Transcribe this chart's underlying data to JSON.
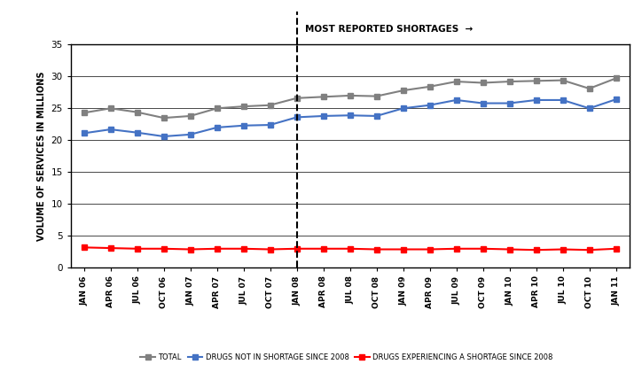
{
  "x_labels": [
    "JAN 06",
    "APR 06",
    "JUL 06",
    "OCT 06",
    "JAN 07",
    "APR 07",
    "JUL 07",
    "OCT 07",
    "JAN 08",
    "APR 08",
    "JUL 08",
    "OCT 08",
    "JAN 09",
    "APR 09",
    "JUL 09",
    "OCT 09",
    "JAN 10",
    "APR 10",
    "JUL 10",
    "OCT 10",
    "JAN 11"
  ],
  "total": [
    24.3,
    25.0,
    24.4,
    23.5,
    23.8,
    25.0,
    25.3,
    25.5,
    26.6,
    26.8,
    27.0,
    26.9,
    27.8,
    28.4,
    29.2,
    29.0,
    29.2,
    29.3,
    29.4,
    28.1,
    29.7
  ],
  "not_shortage": [
    21.1,
    21.7,
    21.2,
    20.6,
    20.9,
    22.0,
    22.3,
    22.4,
    23.6,
    23.8,
    23.9,
    23.8,
    25.0,
    25.5,
    26.3,
    25.8,
    25.8,
    26.3,
    26.3,
    25.0,
    26.4
  ],
  "shortage": [
    3.2,
    3.1,
    3.0,
    3.0,
    2.9,
    3.0,
    3.0,
    2.9,
    3.0,
    3.0,
    3.0,
    2.9,
    2.9,
    2.9,
    3.0,
    3.0,
    2.9,
    2.8,
    2.9,
    2.8,
    3.0
  ],
  "total_color": "#808080",
  "not_shortage_color": "#4472C4",
  "shortage_color": "#FF0000",
  "ylabel": "VOLUME OF SERVICES IN MILLIONS",
  "ylim": [
    0,
    35
  ],
  "yticks": [
    0,
    5,
    10,
    15,
    20,
    25,
    30,
    35
  ],
  "dashed_line_x": 8,
  "annotation_text": "MOST REPORTED SHORTAGES  →",
  "legend_total": "TOTAL",
  "legend_not_shortage": "DRUGS NOT IN SHORTAGE SINCE 2008",
  "legend_shortage": "DRUGS EXPERIENCING A SHORTAGE SINCE 2008",
  "bg_color": "#FFFFFF",
  "grid_color": "#000000"
}
